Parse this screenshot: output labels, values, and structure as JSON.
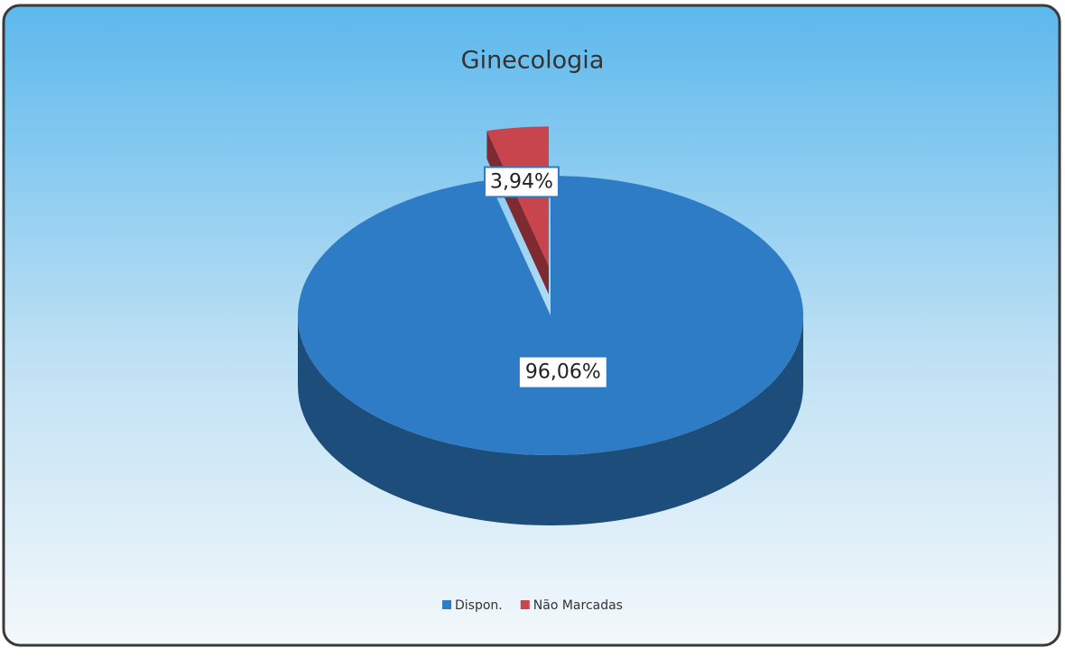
{
  "chart_data": {
    "type": "pie",
    "title": "Ginecologia",
    "categories": [
      "Dispon.",
      "Não Marcadas"
    ],
    "values": [
      96.06,
      3.94
    ],
    "value_labels": [
      "96,06%",
      "3,94%"
    ],
    "colors": [
      "#2f7cc6",
      "#c9454d"
    ],
    "legend": "bottom"
  }
}
